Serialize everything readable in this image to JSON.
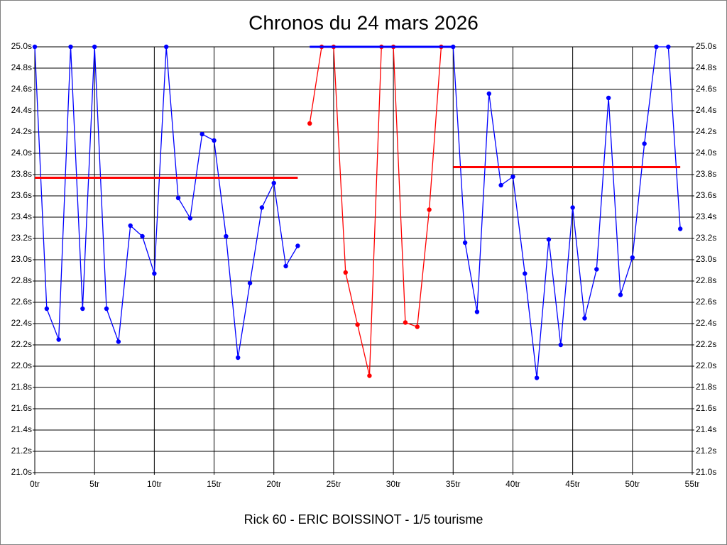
{
  "chart_data": {
    "type": "line",
    "title": "Chronos du 24 mars 2026",
    "subtitle": "Rick 60 - ERIC BOISSINOT - 1/5 tourisme",
    "xlim": [
      0,
      55
    ],
    "ylim": [
      21.0,
      25.0
    ],
    "grid": true,
    "xticks": [
      {
        "value": 0,
        "label": "0tr"
      },
      {
        "value": 5,
        "label": "5tr"
      },
      {
        "value": 10,
        "label": "10tr"
      },
      {
        "value": 15,
        "label": "15tr"
      },
      {
        "value": 20,
        "label": "20tr"
      },
      {
        "value": 25,
        "label": "25tr"
      },
      {
        "value": 30,
        "label": "30tr"
      },
      {
        "value": 35,
        "label": "35tr"
      },
      {
        "value": 40,
        "label": "40tr"
      },
      {
        "value": 45,
        "label": "45tr"
      },
      {
        "value": 50,
        "label": "50tr"
      },
      {
        "value": 55,
        "label": "55tr"
      }
    ],
    "yticks": [
      {
        "value": 21.0,
        "label": "21.0s"
      },
      {
        "value": 21.2,
        "label": "21.2s"
      },
      {
        "value": 21.4,
        "label": "21.4s"
      },
      {
        "value": 21.6,
        "label": "21.6s"
      },
      {
        "value": 21.8,
        "label": "21.8s"
      },
      {
        "value": 22.0,
        "label": "22.0s"
      },
      {
        "value": 22.2,
        "label": "22.2s"
      },
      {
        "value": 22.4,
        "label": "22.4s"
      },
      {
        "value": 22.6,
        "label": "22.6s"
      },
      {
        "value": 22.8,
        "label": "22.8s"
      },
      {
        "value": 23.0,
        "label": "23.0s"
      },
      {
        "value": 23.2,
        "label": "23.2s"
      },
      {
        "value": 23.4,
        "label": "23.4s"
      },
      {
        "value": 23.6,
        "label": "23.6s"
      },
      {
        "value": 23.8,
        "label": "23.8s"
      },
      {
        "value": 24.0,
        "label": "24.0s"
      },
      {
        "value": 24.2,
        "label": "24.2s"
      },
      {
        "value": 24.4,
        "label": "24.4s"
      },
      {
        "value": 24.6,
        "label": "24.6s"
      },
      {
        "value": 24.8,
        "label": "24.8s"
      },
      {
        "value": 25.0,
        "label": "25.0s"
      }
    ],
    "series": [
      {
        "color": "#0000ff",
        "markers": true,
        "x": [
          0,
          1,
          2,
          3,
          4,
          5,
          6,
          7,
          8,
          9,
          10,
          11,
          12,
          13,
          14,
          15,
          16,
          17,
          18,
          19,
          20,
          21,
          22
        ],
        "values": [
          25.0,
          22.54,
          22.25,
          25.0,
          22.54,
          25.0,
          22.54,
          22.23,
          23.32,
          23.22,
          22.87,
          25.0,
          23.58,
          23.39,
          24.18,
          24.12,
          23.22,
          22.08,
          22.78,
          23.49,
          23.72,
          22.94,
          23.13
        ]
      },
      {
        "color": "#ff0000",
        "markers": true,
        "x": [
          23,
          24,
          25,
          26,
          27,
          28,
          29,
          30,
          31,
          32,
          33,
          34
        ],
        "values": [
          24.28,
          25.0,
          25.0,
          22.88,
          22.39,
          21.91,
          25.0,
          25.0,
          22.41,
          22.37,
          23.47,
          25.0
        ]
      },
      {
        "color": "#0000ff",
        "markers": true,
        "x": [
          35,
          36,
          37,
          38,
          39,
          40,
          41,
          42,
          43,
          44,
          45,
          46,
          47,
          48,
          49,
          50,
          51,
          52,
          53,
          54
        ],
        "values": [
          25.0,
          23.16,
          22.51,
          24.56,
          23.7,
          23.78,
          22.87,
          21.89,
          23.19,
          22.2,
          23.49,
          22.45,
          22.91,
          24.52,
          22.67,
          23.02,
          24.09,
          25.0,
          25.0,
          23.29
        ]
      },
      {
        "color": "#ff0000",
        "markers": false,
        "x": [
          0,
          22
        ],
        "values": [
          23.77,
          23.77
        ]
      },
      {
        "color": "#0000ff",
        "markers": false,
        "x": [
          23,
          35
        ],
        "values": [
          25.0,
          25.0
        ]
      },
      {
        "color": "#ff0000",
        "markers": false,
        "x": [
          35,
          54
        ],
        "values": [
          23.87,
          23.87
        ]
      }
    ]
  }
}
